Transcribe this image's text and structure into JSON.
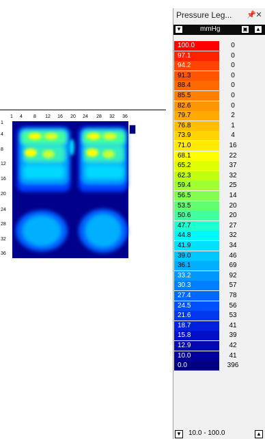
{
  "heatmap": {
    "x_ticks": [
      "1",
      "4",
      "8",
      "12",
      "16",
      "20",
      "24",
      "28",
      "32",
      "36"
    ],
    "y_ticks": [
      "1",
      "4",
      "8",
      "12",
      "16",
      "20",
      "24",
      "28",
      "32",
      "36"
    ]
  },
  "legend": {
    "title": "Pressure Leg...",
    "pin_icon": "pin-icon",
    "close_icon": "close-icon",
    "unit": "mmHg",
    "range": "10.0 - 100.0",
    "rows": [
      {
        "value": "100.0",
        "count": "0",
        "color": "#ff0000",
        "text": "#ffffff"
      },
      {
        "value": "97.1",
        "count": "0",
        "color": "#ff2200",
        "text": "#ffffff"
      },
      {
        "value": "94.2",
        "count": "0",
        "color": "#ff4400",
        "text": "#ffffff"
      },
      {
        "value": "91.3",
        "count": "0",
        "color": "#ff5500",
        "text": "#000000"
      },
      {
        "value": "88.4",
        "count": "0",
        "color": "#ff6a00",
        "text": "#000000"
      },
      {
        "value": "85.5",
        "count": "0",
        "color": "#ff8000",
        "text": "#000000"
      },
      {
        "value": "82.6",
        "count": "0",
        "color": "#ff9500",
        "text": "#000000"
      },
      {
        "value": "79.7",
        "count": "2",
        "color": "#ffaa00",
        "text": "#000000"
      },
      {
        "value": "76.8",
        "count": "1",
        "color": "#ffbf00",
        "text": "#000000"
      },
      {
        "value": "73.9",
        "count": "4",
        "color": "#ffd400",
        "text": "#000000"
      },
      {
        "value": "71.0",
        "count": "16",
        "color": "#ffea00",
        "text": "#000000"
      },
      {
        "value": "68.1",
        "count": "22",
        "color": "#ffff00",
        "text": "#000000"
      },
      {
        "value": "65.2",
        "count": "37",
        "color": "#e0ff00",
        "text": "#000000"
      },
      {
        "value": "62.3",
        "count": "32",
        "color": "#c0ff10",
        "text": "#000000"
      },
      {
        "value": "59.4",
        "count": "25",
        "color": "#a0ff30",
        "text": "#000000"
      },
      {
        "value": "56.5",
        "count": "14",
        "color": "#80ff50",
        "text": "#000000"
      },
      {
        "value": "53.5",
        "count": "20",
        "color": "#60ff70",
        "text": "#000000"
      },
      {
        "value": "50.6",
        "count": "20",
        "color": "#40ffa0",
        "text": "#000000"
      },
      {
        "value": "47.7",
        "count": "27",
        "color": "#20ffd0",
        "text": "#000000"
      },
      {
        "value": "44.8",
        "count": "32",
        "color": "#00f8ff",
        "text": "#000000"
      },
      {
        "value": "41.9",
        "count": "34",
        "color": "#00e0ff",
        "text": "#000000"
      },
      {
        "value": "39.0",
        "count": "46",
        "color": "#00c8ff",
        "text": "#000000"
      },
      {
        "value": "36.1",
        "count": "69",
        "color": "#00b0ff",
        "text": "#000000"
      },
      {
        "value": "33.2",
        "count": "92",
        "color": "#0098ff",
        "text": "#ffffff"
      },
      {
        "value": "30.3",
        "count": "57",
        "color": "#0080ff",
        "text": "#ffffff"
      },
      {
        "value": "27.4",
        "count": "78",
        "color": "#0068ff",
        "text": "#ffffff"
      },
      {
        "value": "24.5",
        "count": "56",
        "color": "#0050ff",
        "text": "#ffffff"
      },
      {
        "value": "21.6",
        "count": "53",
        "color": "#0038f0",
        "text": "#ffffff"
      },
      {
        "value": "18.7",
        "count": "41",
        "color": "#0020e0",
        "text": "#ffffff"
      },
      {
        "value": "15.8",
        "count": "39",
        "color": "#0010c8",
        "text": "#ffffff"
      },
      {
        "value": "12.9",
        "count": "42",
        "color": "#0008b0",
        "text": "#ffffff"
      },
      {
        "value": "10.0",
        "count": "41",
        "color": "#000098",
        "text": "#ffffff"
      },
      {
        "value": "0.0",
        "count": "396",
        "color": "#000080",
        "text": "#ffffff"
      }
    ]
  }
}
